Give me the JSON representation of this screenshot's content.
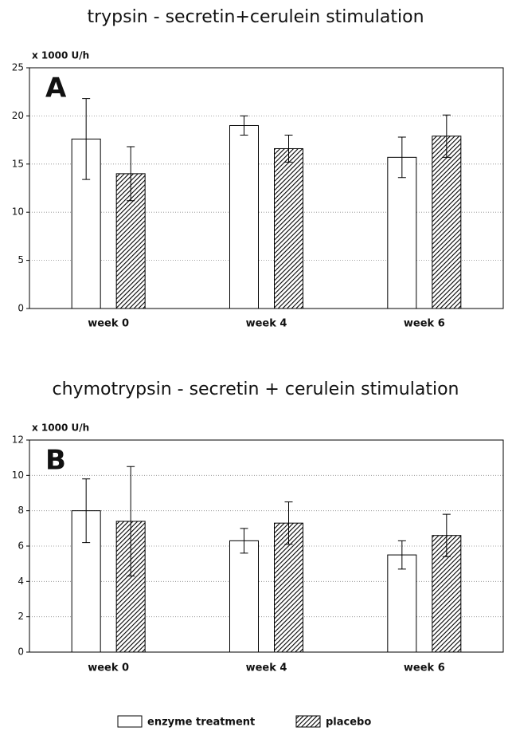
{
  "chart_data": [
    {
      "type": "bar",
      "title": "trypsin - secretin+cerulein stimulation",
      "annotation": "A",
      "ylabel": "x 1000 U/h",
      "categories": [
        "week 0",
        "week 4",
        "week 6"
      ],
      "series": [
        {
          "color": "#000000",
          "pattern": "none",
          "values": [
            17.6,
            19.0,
            15.7
          ],
          "errors": [
            4.2,
            1.0,
            2.1
          ]
        },
        {
          "color": "#000000",
          "pattern": "hatch",
          "values": [
            14.0,
            16.6,
            17.9
          ],
          "errors": [
            2.8,
            1.4,
            2.2
          ]
        }
      ],
      "ylim": [
        0,
        25
      ],
      "yticks": [
        0,
        5,
        10,
        15,
        20,
        25
      ],
      "grid": true
    },
    {
      "type": "bar",
      "title": "chymotrypsin - secretin + cerulein stimulation",
      "annotation": "B",
      "ylabel": "x 1000 U/h",
      "categories": [
        "week 0",
        "week 4",
        "week 6"
      ],
      "series": [
        {
          "name": "enzyme treatment",
          "color": "#000000",
          "pattern": "none",
          "values": [
            8.0,
            6.3,
            5.5
          ],
          "errors": [
            1.8,
            0.7,
            0.8
          ]
        },
        {
          "name": "placebo",
          "color": "#000000",
          "pattern": "hatch",
          "values": [
            7.4,
            7.3,
            6.6
          ],
          "errors": [
            3.1,
            1.2,
            1.2
          ]
        }
      ],
      "ylim": [
        0,
        12
      ],
      "yticks": [
        0,
        2,
        4,
        6,
        8,
        10,
        12
      ],
      "grid": true
    }
  ]
}
